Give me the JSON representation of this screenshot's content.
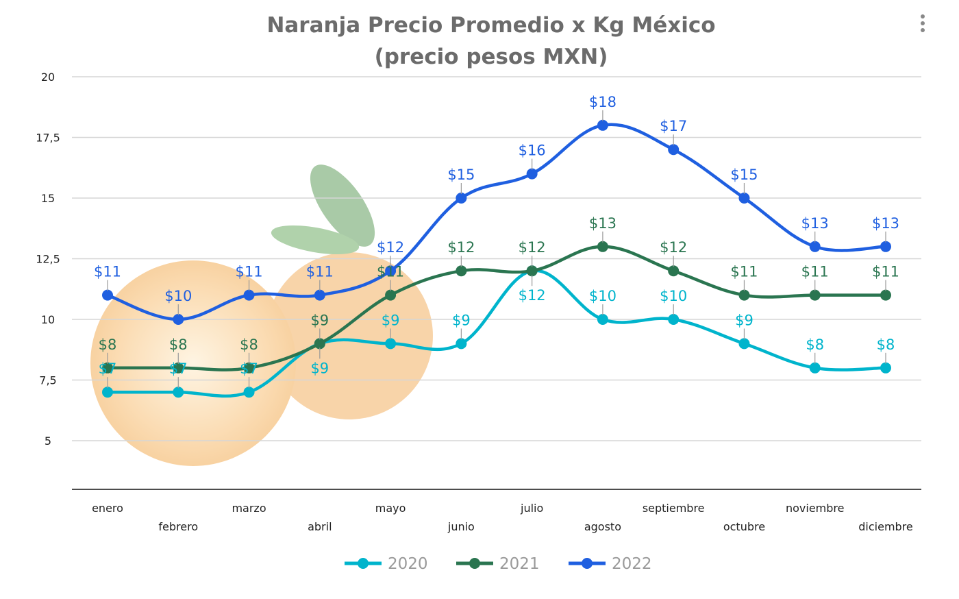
{
  "chart_data": {
    "type": "line",
    "title": [
      "Naranja Precio Promedio x Kg México",
      "(precio pesos MXN)"
    ],
    "xlabel": "",
    "ylabel": "",
    "categories": [
      "enero",
      "febrero",
      "marzo",
      "abril",
      "mayo",
      "junio",
      "julio",
      "agosto",
      "septiembre",
      "octubre",
      "noviembre",
      "diciembre"
    ],
    "ylim": [
      3,
      20
    ],
    "yticks": [
      5,
      7.5,
      10,
      12.5,
      15,
      17.5,
      20
    ],
    "ytick_labels": [
      "5",
      "7,5",
      "10",
      "12,5",
      "15",
      "17,5",
      "20"
    ],
    "grid": true,
    "smooth": true,
    "legend_position": "bottom",
    "series": [
      {
        "name": "2020",
        "color": "#00b4cc",
        "values": [
          7,
          7,
          7,
          9,
          9,
          9,
          12,
          10,
          10,
          9,
          8,
          8
        ],
        "labels": [
          "$7",
          "$7",
          "$7",
          "$9",
          "$9",
          "$9",
          "$12",
          "$10",
          "$10",
          "$9",
          "$8",
          "$8"
        ]
      },
      {
        "name": "2021",
        "color": "#2a7550",
        "values": [
          8,
          8,
          8,
          9,
          11,
          12,
          12,
          13,
          12,
          11,
          11,
          11
        ],
        "labels": [
          "$8",
          "$8",
          "$8",
          "$9",
          "$11",
          "$12",
          "$12",
          "$13",
          "$12",
          "$11",
          "$11",
          "$11"
        ]
      },
      {
        "name": "2022",
        "color": "#1f5fe0",
        "values": [
          11,
          10,
          11,
          11,
          12,
          15,
          16,
          18,
          17,
          15,
          13,
          13
        ],
        "labels": [
          "$11",
          "$10",
          "$11",
          "$11",
          "$12",
          "$15",
          "$16",
          "$18",
          "$17",
          "$15",
          "$13",
          "$13"
        ]
      }
    ]
  },
  "menu_icon": "more-vertical-icon",
  "background_image": "orange-fruit-illustration"
}
